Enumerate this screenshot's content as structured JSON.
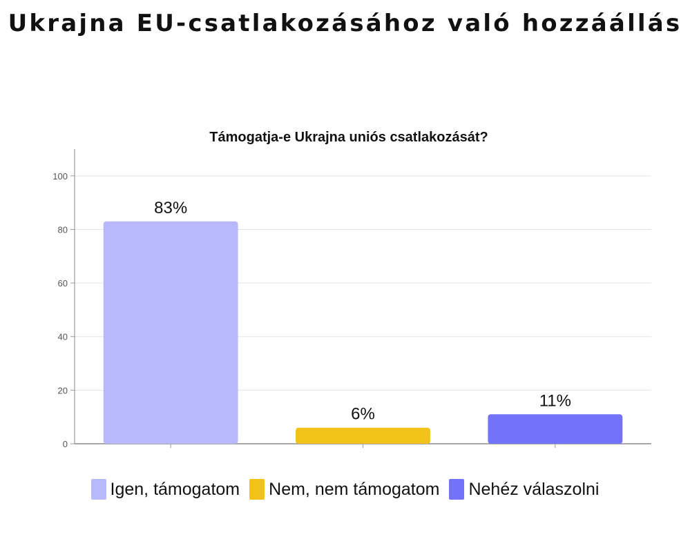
{
  "page": {
    "title": "Ukrajna EU-csatlakozásához való hozzáállás"
  },
  "chart_data": {
    "type": "bar",
    "title": "Támogatja-e Ukrajna uniós csatlakozását?",
    "xlabel": "",
    "ylabel": "",
    "ylim": [
      0,
      110
    ],
    "yticks": [
      0,
      20,
      40,
      60,
      80,
      100
    ],
    "grid": true,
    "legend_position": "bottom",
    "categories": [
      "Igen, támogatom",
      "Nem, nem támogatom",
      "Nehéz válaszolni"
    ],
    "values": [
      83,
      6,
      11
    ],
    "labels": [
      "83%",
      "6%",
      "11%"
    ],
    "colors": [
      "#b8b8fc",
      "#f2c218",
      "#7373fa"
    ]
  }
}
